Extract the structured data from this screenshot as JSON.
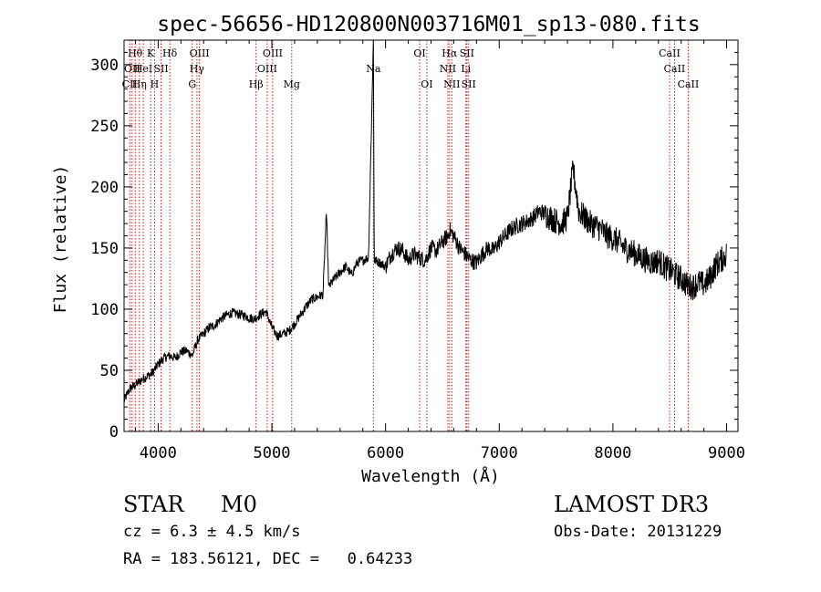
{
  "chart_data": {
    "type": "line",
    "title": "spec-56656-HD120800N003716M01_sp13-080.fits",
    "xlabel": "Wavelength (Å)",
    "ylabel": "Flux (relative)",
    "xlim": [
      3700,
      9100
    ],
    "ylim": [
      0,
      320
    ],
    "xticks": [
      4000,
      5000,
      6000,
      7000,
      8000,
      9000
    ],
    "yticks": [
      0,
      50,
      100,
      150,
      200,
      250,
      300
    ],
    "grid": false,
    "line_color": "#000000",
    "marker_color": "#cc0000",
    "series": [
      {
        "x": [
          3700,
          3750,
          3800,
          3850,
          3900,
          3950,
          4000,
          4050,
          4100,
          4150,
          4200,
          4250,
          4300,
          4350,
          4400,
          4450,
          4500,
          4550,
          4600,
          4650,
          4700,
          4750,
          4800,
          4850,
          4900,
          4950,
          5000,
          5050,
          5100,
          5150,
          5200,
          5250,
          5300,
          5350,
          5400,
          5450,
          5480,
          5500,
          5550,
          5600,
          5650,
          5700,
          5750,
          5800,
          5850,
          5893,
          5900,
          5950,
          6000,
          6050,
          6100,
          6150,
          6200,
          6250,
          6300,
          6350,
          6400,
          6450,
          6500,
          6550,
          6563,
          6600,
          6650,
          6700,
          6750,
          6800,
          6850,
          6900,
          6950,
          7000,
          7050,
          7100,
          7150,
          7200,
          7250,
          7300,
          7350,
          7400,
          7450,
          7500,
          7550,
          7600,
          7650,
          7700,
          7750,
          7800,
          7850,
          7900,
          7950,
          8000,
          8050,
          8100,
          8150,
          8200,
          8250,
          8300,
          8350,
          8400,
          8450,
          8500,
          8550,
          8600,
          8650,
          8700,
          8750,
          8800,
          8850,
          8900,
          8950,
          9000
        ],
        "y": [
          25,
          35,
          38,
          42,
          45,
          48,
          55,
          60,
          62,
          60,
          65,
          66,
          62,
          75,
          80,
          85,
          87,
          92,
          95,
          97,
          96,
          95,
          93,
          92,
          96,
          98,
          85,
          78,
          80,
          82,
          88,
          95,
          102,
          108,
          110,
          112,
          180,
          118,
          125,
          130,
          135,
          128,
          138,
          140,
          142,
          320,
          140,
          138,
          135,
          145,
          150,
          148,
          140,
          145,
          142,
          140,
          150,
          148,
          155,
          160,
          165,
          160,
          150,
          145,
          140,
          138,
          145,
          150,
          148,
          155,
          160,
          165,
          168,
          170,
          172,
          175,
          180,
          178,
          175,
          172,
          170,
          175,
          215,
          180,
          175,
          170,
          168,
          165,
          160,
          158,
          155,
          150,
          148,
          145,
          142,
          140,
          138,
          140,
          135,
          132,
          128,
          125,
          120,
          118,
          122,
          120,
          125,
          135,
          140,
          145
        ]
      }
    ],
    "line_markers": [
      {
        "w": 3750,
        "label": "CII",
        "row": 2
      },
      {
        "w": 3771,
        "label": "OII",
        "row": 1
      },
      {
        "w": 3798,
        "label": "Hθ",
        "row": 0
      },
      {
        "w": 3835,
        "label": "Hη",
        "row": 2
      },
      {
        "w": 3869,
        "label": "HeI",
        "row": 1
      },
      {
        "w": 3934,
        "label": "K",
        "row": 0
      },
      {
        "w": 3968,
        "label": "H",
        "row": 2
      },
      {
        "w": 4026,
        "label": "SII",
        "row": 1
      },
      {
        "w": 4102,
        "label": "Hδ",
        "row": 0
      },
      {
        "w": 4300,
        "label": "G",
        "row": 2
      },
      {
        "w": 4341,
        "label": "Hγ",
        "row": 1
      },
      {
        "w": 4363,
        "label": "OIII",
        "row": 0
      },
      {
        "w": 4861,
        "label": "Hβ",
        "row": 2
      },
      {
        "w": 4959,
        "label": "OIII",
        "row": 1
      },
      {
        "w": 5007,
        "label": "OIII",
        "row": 0
      },
      {
        "w": 5175,
        "label": "Mg",
        "row": 2
      },
      {
        "w": 5893,
        "label": "Na",
        "row": 1
      },
      {
        "w": 6300,
        "label": "OI",
        "row": 0
      },
      {
        "w": 6363,
        "label": "OI",
        "row": 2
      },
      {
        "w": 6548,
        "label": "NII",
        "row": 1
      },
      {
        "w": 6563,
        "label": "Hα",
        "row": 0
      },
      {
        "w": 6583,
        "label": "NII",
        "row": 2
      },
      {
        "w": 6707,
        "label": "Li",
        "row": 1
      },
      {
        "w": 6716,
        "label": "SII",
        "row": 0
      },
      {
        "w": 6731,
        "label": "SII",
        "row": 2
      },
      {
        "w": 8498,
        "label": "CaII",
        "row": 0
      },
      {
        "w": 8542,
        "label": "CaII",
        "row": 1
      },
      {
        "w": 8662,
        "label": "CaII",
        "row": 2
      }
    ]
  },
  "info": {
    "class": "STAR",
    "subclass": "M0",
    "cz": "cz = 6.3 ± 4.5 km/s",
    "coords": "RA = 183.56121, DEC =   0.64233",
    "survey": "LAMOST DR3",
    "obs_date": "Obs-Date: 20131229"
  }
}
